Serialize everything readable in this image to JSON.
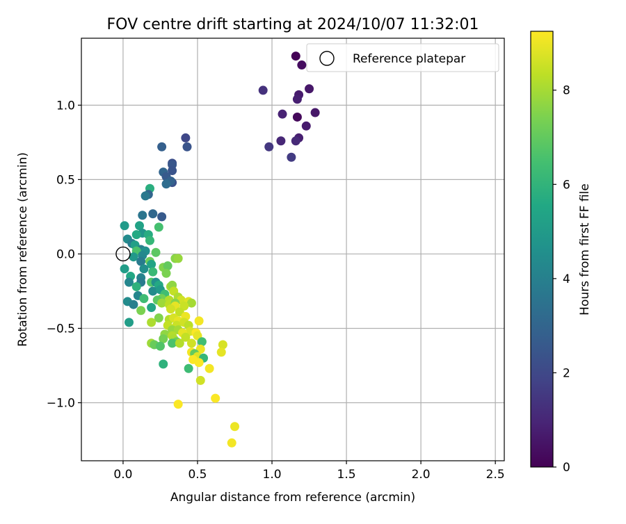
{
  "chart_data": {
    "type": "scatter",
    "title": "FOV centre drift starting at 2024/10/07 11:32:01",
    "xlabel": "Angular distance from reference (arcmin)",
    "ylabel": "Rotation from reference (arcmin)",
    "xlim": [
      -0.28,
      2.56
    ],
    "ylim": [
      -1.39,
      1.45
    ],
    "xticks": [
      0.0,
      0.5,
      1.0,
      1.5,
      2.0,
      2.5
    ],
    "xtick_labels": [
      "0.0",
      "0.5",
      "1.0",
      "1.5",
      "2.0",
      "2.5"
    ],
    "yticks": [
      -1.0,
      -0.5,
      0.0,
      0.5,
      1.0
    ],
    "ytick_labels": [
      "−1.0",
      "−0.5",
      "0.0",
      "0.5",
      "1.0"
    ],
    "grid": true,
    "legend": {
      "placement": "top-right",
      "entries": [
        "Reference platepar"
      ]
    },
    "reference": {
      "x": 0.0,
      "y": 0.0,
      "label": "Reference platepar"
    },
    "colorbar": {
      "label": "Hours from first FF file",
      "colormap": "viridis",
      "range": [
        0,
        9.25
      ],
      "ticks": [
        0,
        2,
        4,
        6,
        8
      ],
      "tick_labels": [
        "0",
        "2",
        "4",
        "6",
        "8"
      ]
    },
    "points": [
      [
        1.16,
        1.33,
        0.05
      ],
      [
        1.2,
        1.27,
        0.3
      ],
      [
        1.25,
        1.11,
        0.6
      ],
      [
        1.18,
        1.07,
        0.7
      ],
      [
        1.17,
        1.04,
        0.8
      ],
      [
        0.94,
        1.1,
        1.3
      ],
      [
        1.07,
        0.94,
        0.9
      ],
      [
        1.29,
        0.95,
        0.6
      ],
      [
        1.17,
        0.92,
        0.2
      ],
      [
        1.23,
        0.86,
        0.7
      ],
      [
        1.18,
        0.78,
        0.8
      ],
      [
        1.06,
        0.76,
        1.0
      ],
      [
        1.16,
        0.76,
        1.1
      ],
      [
        0.98,
        0.72,
        1.5
      ],
      [
        1.13,
        0.65,
        1.6
      ],
      [
        0.42,
        0.78,
        2.0
      ],
      [
        0.43,
        0.72,
        2.4
      ],
      [
        0.26,
        0.72,
        2.8
      ],
      [
        0.33,
        0.61,
        2.2
      ],
      [
        0.33,
        0.6,
        2.5
      ],
      [
        0.33,
        0.56,
        2.4
      ],
      [
        0.27,
        0.55,
        3.0
      ],
      [
        0.29,
        0.52,
        2.6
      ],
      [
        0.33,
        0.48,
        2.3
      ],
      [
        0.32,
        0.49,
        2.9
      ],
      [
        0.29,
        0.47,
        3.3
      ],
      [
        0.18,
        0.44,
        5.8
      ],
      [
        0.17,
        0.4,
        3.0
      ],
      [
        0.15,
        0.39,
        3.7
      ],
      [
        0.26,
        0.25,
        2.6
      ],
      [
        0.2,
        0.27,
        3.1
      ],
      [
        0.13,
        0.26,
        3.6
      ],
      [
        0.24,
        0.18,
        6.5
      ],
      [
        0.01,
        0.19,
        5.0
      ],
      [
        0.11,
        0.19,
        5.3
      ],
      [
        0.13,
        0.14,
        4.8
      ],
      [
        0.09,
        0.13,
        5.6
      ],
      [
        0.17,
        0.13,
        5.7
      ],
      [
        0.18,
        0.09,
        6.1
      ],
      [
        0.03,
        0.1,
        4.4
      ],
      [
        0.06,
        0.07,
        3.9
      ],
      [
        0.08,
        0.06,
        5.2
      ],
      [
        0.12,
        0.03,
        4.0
      ],
      [
        0.15,
        0.02,
        4.6
      ],
      [
        0.09,
        0.02,
        6.6
      ],
      [
        0.22,
        0.01,
        6.9
      ],
      [
        0.13,
        -0.01,
        4.3
      ],
      [
        0.07,
        -0.02,
        4.9
      ],
      [
        0.12,
        -0.05,
        3.8
      ],
      [
        0.18,
        -0.05,
        7.2
      ],
      [
        0.19,
        -0.07,
        5.4
      ],
      [
        0.01,
        -0.1,
        5.1
      ],
      [
        0.27,
        -0.09,
        7.5
      ],
      [
        0.3,
        -0.08,
        7.0
      ],
      [
        0.35,
        -0.03,
        7.6
      ],
      [
        0.37,
        -0.03,
        7.8
      ],
      [
        0.14,
        -0.1,
        4.5
      ],
      [
        0.2,
        -0.12,
        6.2
      ],
      [
        0.29,
        -0.13,
        7.4
      ],
      [
        0.05,
        -0.15,
        5.5
      ],
      [
        0.12,
        -0.16,
        4.1
      ],
      [
        0.04,
        -0.19,
        4.2
      ],
      [
        0.12,
        -0.19,
        3.8
      ],
      [
        0.19,
        -0.19,
        6.7
      ],
      [
        0.22,
        -0.19,
        4.6
      ],
      [
        0.24,
        -0.21,
        5.6
      ],
      [
        0.32,
        -0.22,
        8.0
      ],
      [
        0.33,
        -0.21,
        7.7
      ],
      [
        0.09,
        -0.22,
        5.9
      ],
      [
        0.2,
        -0.25,
        4.4
      ],
      [
        0.25,
        -0.24,
        5.0
      ],
      [
        0.34,
        -0.25,
        8.4
      ],
      [
        0.28,
        -0.27,
        6.4
      ],
      [
        0.37,
        -0.29,
        8.1
      ],
      [
        0.1,
        -0.28,
        4.2
      ],
      [
        0.14,
        -0.3,
        6.3
      ],
      [
        0.26,
        -0.3,
        7.3
      ],
      [
        0.23,
        -0.31,
        6.9
      ],
      [
        0.31,
        -0.31,
        8.2
      ],
      [
        0.39,
        -0.31,
        8.6
      ],
      [
        0.03,
        -0.32,
        4.4
      ],
      [
        0.07,
        -0.34,
        4.0
      ],
      [
        0.26,
        -0.33,
        7.9
      ],
      [
        0.31,
        -0.34,
        8.3
      ],
      [
        0.35,
        -0.33,
        7.6
      ],
      [
        0.44,
        -0.32,
        8.8
      ],
      [
        0.46,
        -0.33,
        8.0
      ],
      [
        0.19,
        -0.36,
        5.4
      ],
      [
        0.35,
        -0.35,
        8.9
      ],
      [
        0.41,
        -0.35,
        8.5
      ],
      [
        0.12,
        -0.38,
        7.4
      ],
      [
        0.32,
        -0.37,
        8.6
      ],
      [
        0.38,
        -0.39,
        8.4
      ],
      [
        0.24,
        -0.43,
        7.5
      ],
      [
        0.31,
        -0.44,
        8.2
      ],
      [
        0.34,
        -0.43,
        8.7
      ],
      [
        0.37,
        -0.45,
        8.9
      ],
      [
        0.42,
        -0.42,
        9.0
      ],
      [
        0.19,
        -0.46,
        8.1
      ],
      [
        0.04,
        -0.46,
        5.1
      ],
      [
        0.3,
        -0.48,
        8.4
      ],
      [
        0.36,
        -0.48,
        8.5
      ],
      [
        0.41,
        -0.46,
        8.6
      ],
      [
        0.44,
        -0.48,
        8.3
      ],
      [
        0.51,
        -0.45,
        9.1
      ],
      [
        0.33,
        -0.51,
        7.8
      ],
      [
        0.37,
        -0.51,
        8.0
      ],
      [
        0.45,
        -0.52,
        8.7
      ],
      [
        0.28,
        -0.54,
        7.7
      ],
      [
        0.33,
        -0.55,
        8.2
      ],
      [
        0.4,
        -0.53,
        8.9
      ],
      [
        0.49,
        -0.53,
        9.2
      ],
      [
        0.27,
        -0.57,
        7.3
      ],
      [
        0.34,
        -0.57,
        8.1
      ],
      [
        0.42,
        -0.56,
        8.4
      ],
      [
        0.5,
        -0.55,
        8.9
      ],
      [
        0.36,
        -0.59,
        7.2
      ],
      [
        0.46,
        -0.6,
        8.6
      ],
      [
        0.53,
        -0.59,
        6.4
      ],
      [
        0.19,
        -0.6,
        7.9
      ],
      [
        0.21,
        -0.61,
        7.1
      ],
      [
        0.25,
        -0.62,
        6.7
      ],
      [
        0.33,
        -0.6,
        6.6
      ],
      [
        0.38,
        -0.6,
        8.2
      ],
      [
        0.52,
        -0.64,
        9.0
      ],
      [
        0.67,
        -0.61,
        8.7
      ],
      [
        0.66,
        -0.66,
        8.9
      ],
      [
        0.46,
        -0.66,
        9.1
      ],
      [
        0.48,
        -0.67,
        7.0
      ],
      [
        0.5,
        -0.69,
        8.8
      ],
      [
        0.54,
        -0.7,
        6.1
      ],
      [
        0.47,
        -0.71,
        9.2
      ],
      [
        0.51,
        -0.73,
        9.2
      ],
      [
        0.27,
        -0.74,
        5.9
      ],
      [
        0.58,
        -0.77,
        9.1
      ],
      [
        0.44,
        -0.77,
        6.3
      ],
      [
        0.52,
        -0.85,
        8.6
      ],
      [
        0.62,
        -0.97,
        9.2
      ],
      [
        0.37,
        -1.01,
        9.2
      ],
      [
        0.75,
        -1.16,
        9.0
      ],
      [
        0.73,
        -1.27,
        9.1
      ]
    ]
  }
}
